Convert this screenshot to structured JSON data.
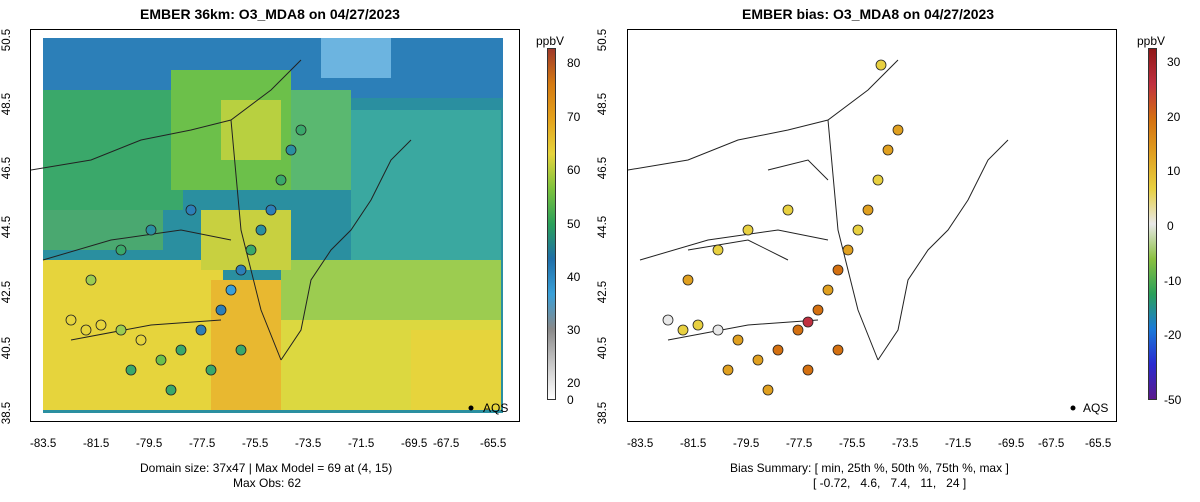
{
  "left_panel": {
    "title": "EMBER 36km: O3_MDA8 on 04/27/2023",
    "yticks": [
      "38.5",
      "40.5",
      "42.5",
      "44.5",
      "46.5",
      "48.5",
      "50.5"
    ],
    "xticks": [
      "-83.5",
      "-81.5",
      "-79.5",
      "-77.5",
      "-75.5",
      "-73.5",
      "-71.5",
      "-69.5",
      "-67.5",
      "-65.5"
    ],
    "caption_line1": "Domain size: 37x47 | Max Model = 69 at (4, 15)",
    "caption_line2": "Max Obs: 62",
    "legend_label": "AQS",
    "colorbar": {
      "unit": "ppbV",
      "ticks": [
        "0",
        "20",
        "30",
        "40",
        "50",
        "60",
        "70",
        "80"
      ],
      "colors": [
        "#ffffff",
        "#c8c8c8",
        "#8a8a8a",
        "#3aa0d8",
        "#1f6fa8",
        "#2aa05a",
        "#7cc23c",
        "#e6d43c",
        "#e4a21c",
        "#d47a12",
        "#a03a2a"
      ]
    }
  },
  "right_panel": {
    "title": "EMBER bias: O3_MDA8 on 04/27/2023",
    "yticks": [
      "38.5",
      "40.5",
      "42.5",
      "44.5",
      "46.5",
      "48.5",
      "50.5"
    ],
    "xticks": [
      "-83.5",
      "-81.5",
      "-79.5",
      "-77.5",
      "-75.5",
      "-73.5",
      "-71.5",
      "-69.5",
      "-67.5",
      "-65.5"
    ],
    "caption_line1": "Bias Summary: [ min, 25th %, 50th %, 75th %, max ]",
    "caption_line2": "[ -0.72,   4.6,   7.4,   11,   24 ]",
    "legend_label": "AQS",
    "colorbar": {
      "unit": "ppbV",
      "ticks": [
        "-50",
        "-20",
        "-10",
        "0",
        "10",
        "20",
        "30"
      ],
      "colors": [
        "#5a1a8c",
        "#2a2ad0",
        "#1a7ad8",
        "#2aa05a",
        "#8ac040",
        "#e8e8e8",
        "#e8d040",
        "#e0a020",
        "#d47010",
        "#c03040",
        "#901818"
      ]
    }
  },
  "chart_data": [
    {
      "type": "heatmap",
      "title": "EMBER 36km: O3_MDA8 on 04/27/2023",
      "xlim": [
        -84.5,
        -65.0
      ],
      "ylim": [
        38.5,
        50.5
      ],
      "units": "ppbV",
      "colorbar_range": [
        0,
        82
      ],
      "summary": {
        "domain_size": "37x47",
        "max_model": 69,
        "max_model_cell": [
          4,
          15
        ],
        "max_obs": 62
      },
      "legend": "AQS"
    },
    {
      "type": "scatter",
      "title": "EMBER bias: O3_MDA8 on 04/27/2023",
      "xlim": [
        -84.5,
        -65.0
      ],
      "ylim": [
        38.5,
        50.5
      ],
      "units": "ppbV",
      "colorbar_range": [
        -50,
        32
      ],
      "bias_summary": {
        "min": -0.72,
        "p25": 4.6,
        "p50": 7.4,
        "p75": 11,
        "max": 24
      },
      "legend": "AQS"
    }
  ]
}
